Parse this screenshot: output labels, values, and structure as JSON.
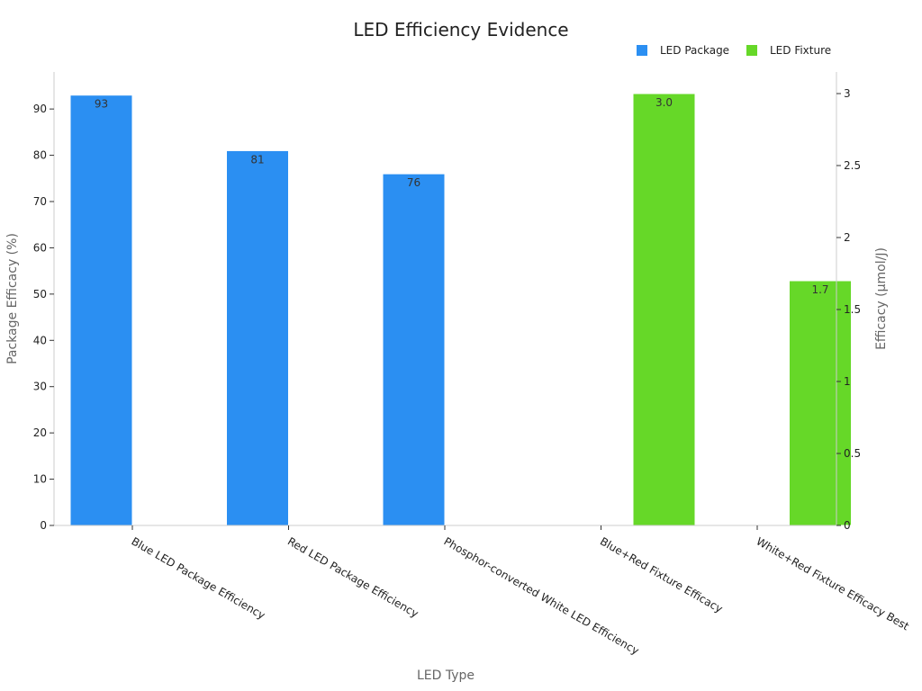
{
  "chart_data": {
    "type": "bar",
    "title": "LED Efficiency Evidence",
    "xlabel": "LED Type",
    "ylabel": "Package Efficacy (%)",
    "ylabel_right": "Efficacy (µmol/J)",
    "categories": [
      "Blue LED Package Efficiency",
      "Red LED Package Efficiency",
      "Phosphor-converted White LED Efficiency",
      "Blue+Red Fixture Efficacy",
      "White+Red Fixture Efficacy Best"
    ],
    "series": [
      {
        "name": "LED Package",
        "axis": "left",
        "color": "#2b8ff2",
        "values": [
          93,
          81,
          76,
          null,
          null
        ],
        "labels": [
          "93",
          "81",
          "76",
          "",
          ""
        ]
      },
      {
        "name": "LED Fixture",
        "axis": "right",
        "color": "#66d828",
        "values": [
          null,
          null,
          null,
          3.0,
          1.7
        ],
        "labels": [
          "",
          "",
          "",
          "3.0",
          "1.7"
        ]
      }
    ],
    "ylim": [
      0,
      98
    ],
    "yticks": [
      "0",
      "10",
      "20",
      "30",
      "40",
      "50",
      "60",
      "70",
      "80",
      "90"
    ],
    "ylim_right": [
      0,
      3.15
    ],
    "yticks_right": [
      "0",
      "0.5",
      "1",
      "1.5",
      "2",
      "2.5",
      "3"
    ],
    "grid": false,
    "legend_position": "top-right"
  }
}
